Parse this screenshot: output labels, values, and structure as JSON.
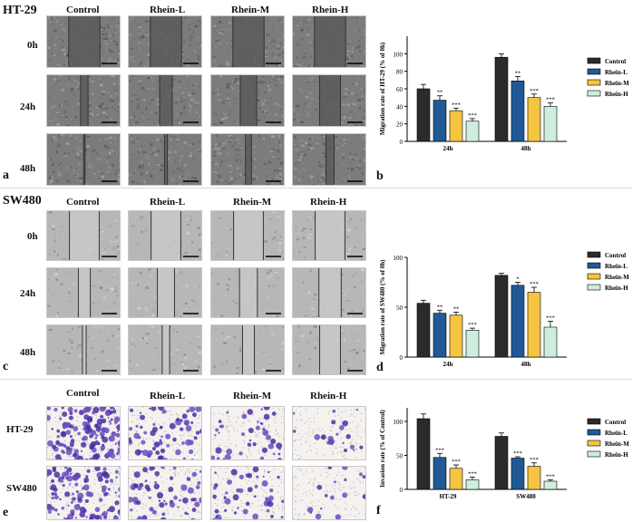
{
  "panels": {
    "a": {
      "panel_letter": "a",
      "cell_line": "HT-29",
      "columns": [
        "Control",
        "Rhein-L",
        "Rhein-M",
        "Rhein-H"
      ],
      "rows": [
        "0h",
        "24h",
        "48h"
      ],
      "gaps": [
        [
          0.42,
          0.42,
          0.42,
          0.42
        ],
        [
          0.1,
          0.17,
          0.22,
          0.28
        ],
        [
          0.02,
          0.04,
          0.08,
          0.11
        ]
      ]
    },
    "c": {
      "panel_letter": "c",
      "cell_line": "SW480",
      "columns": [
        "Control",
        "Rhein-L",
        "Rhein-M",
        "Rhein-H"
      ],
      "rows": [
        "0h",
        "24h",
        "48h"
      ],
      "gaps": [
        [
          0.4,
          0.4,
          0.4,
          0.4
        ],
        [
          0.16,
          0.23,
          0.24,
          0.3
        ],
        [
          0.05,
          0.1,
          0.16,
          0.28
        ]
      ]
    },
    "e": {
      "panel_letter": "e",
      "columns": [
        "Control",
        "Rhein-L",
        "Rhein-M",
        "Rhein-H"
      ],
      "rows": [
        "HT-29",
        "SW480"
      ],
      "density": [
        [
          1.0,
          0.48,
          0.32,
          0.14
        ],
        [
          0.8,
          0.46,
          0.34,
          0.12
        ]
      ]
    },
    "b": {
      "panel_letter": "b"
    },
    "d": {
      "panel_letter": "d"
    },
    "f": {
      "panel_letter": "f"
    }
  },
  "chart_data": [
    {
      "panel": "b",
      "type": "bar",
      "ylabel": "Migration rate of HT-29 (% of 0h)",
      "categories": [
        "24h",
        "48h"
      ],
      "ylim": [
        0,
        120
      ],
      "yticks": [
        0,
        20,
        40,
        60,
        80,
        100
      ],
      "legend_placement": "right",
      "series": [
        {
          "name": "Control",
          "values": [
            60,
            96
          ],
          "errors": [
            5,
            4
          ],
          "sig": [
            "",
            ""
          ]
        },
        {
          "name": "Rhein-L",
          "values": [
            47,
            69
          ],
          "errors": [
            5,
            5
          ],
          "sig": [
            "**",
            "**"
          ]
        },
        {
          "name": "Rhein-M",
          "values": [
            35,
            50
          ],
          "errors": [
            3,
            4
          ],
          "sig": [
            "***",
            "***"
          ]
        },
        {
          "name": "Rhein-H",
          "values": [
            23,
            40
          ],
          "errors": [
            3,
            4
          ],
          "sig": [
            "***",
            "***"
          ]
        }
      ],
      "colors": [
        "#2b2b2b",
        "#1f5a96",
        "#f5c440",
        "#cdeedd"
      ]
    },
    {
      "panel": "d",
      "type": "bar",
      "ylabel": "Migration rate of SW480 (% of 0h)",
      "categories": [
        "24h",
        "48h"
      ],
      "ylim": [
        0,
        100
      ],
      "yticks": [
        0,
        50,
        100
      ],
      "legend_placement": "right",
      "series": [
        {
          "name": "Control",
          "values": [
            54,
            82
          ],
          "errors": [
            3,
            2
          ],
          "sig": [
            "",
            ""
          ]
        },
        {
          "name": "Rhein-L",
          "values": [
            44,
            72
          ],
          "errors": [
            3,
            3
          ],
          "sig": [
            "**",
            "*"
          ]
        },
        {
          "name": "Rhein-M",
          "values": [
            42,
            65
          ],
          "errors": [
            3,
            5
          ],
          "sig": [
            "**",
            "***"
          ]
        },
        {
          "name": "Rhein-H",
          "values": [
            27,
            30
          ],
          "errors": [
            2,
            6
          ],
          "sig": [
            "***",
            "***"
          ]
        }
      ],
      "colors": [
        "#2b2b2b",
        "#1f5a96",
        "#f5c440",
        "#cdeedd"
      ]
    },
    {
      "panel": "f",
      "type": "bar",
      "ylabel": "Invasion rate (% of Control)",
      "categories": [
        "HT-29",
        "SW480"
      ],
      "ylim": [
        0,
        120
      ],
      "yticks": [
        0,
        50,
        100
      ],
      "legend_placement": "right",
      "series": [
        {
          "name": "Control",
          "values": [
            104,
            78
          ],
          "errors": [
            7,
            5
          ],
          "sig": [
            "",
            ""
          ]
        },
        {
          "name": "Rhein-L",
          "values": [
            47,
            46
          ],
          "errors": [
            6,
            2
          ],
          "sig": [
            "***",
            "***"
          ]
        },
        {
          "name": "Rhein-M",
          "values": [
            31,
            34
          ],
          "errors": [
            5,
            5
          ],
          "sig": [
            "***",
            "***"
          ]
        },
        {
          "name": "Rhein-H",
          "values": [
            14,
            12
          ],
          "errors": [
            4,
            2
          ],
          "sig": [
            "***",
            "***"
          ]
        }
      ],
      "colors": [
        "#2b2b2b",
        "#1f5a96",
        "#f5c440",
        "#cdeedd"
      ]
    }
  ]
}
